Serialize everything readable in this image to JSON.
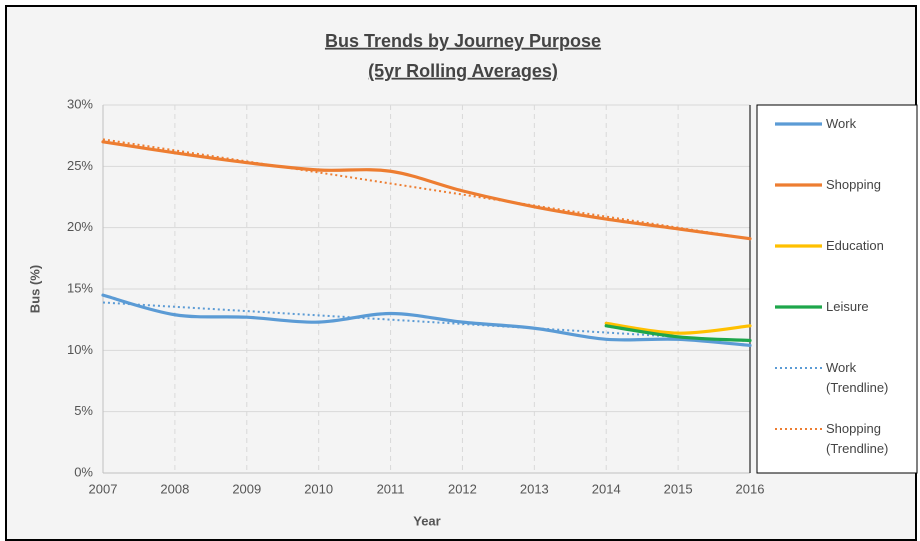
{
  "chart_data": {
    "type": "line",
    "title": "Bus Trends by Journey Purpose",
    "subtitle": "(5yr Rolling Averages)",
    "x_label": "Year",
    "y_label": "Bus (%)",
    "x": [
      2007,
      2008,
      2009,
      2010,
      2011,
      2012,
      2013,
      2014,
      2015,
      2016
    ],
    "xlim": [
      2007,
      2016
    ],
    "xticks": [
      2007,
      2008,
      2009,
      2010,
      2011,
      2012,
      2013,
      2014,
      2015,
      2016
    ],
    "ylim": [
      0,
      30
    ],
    "yticks": [
      {
        "value": 0,
        "label": "0%"
      },
      {
        "value": 5,
        "label": "5%"
      },
      {
        "value": 10,
        "label": "10%"
      },
      {
        "value": 15,
        "label": "15%"
      },
      {
        "value": 20,
        "label": "20%"
      },
      {
        "value": 25,
        "label": "25%"
      },
      {
        "value": 30,
        "label": "30%"
      }
    ],
    "grid": true,
    "smooth": true,
    "legend": "right",
    "series": [
      {
        "name": "Work",
        "color": "#5b9bd5",
        "style": "solid",
        "values": [
          14.5,
          12.9,
          12.7,
          12.3,
          13.0,
          12.3,
          11.8,
          10.9,
          10.9,
          10.4
        ]
      },
      {
        "name": "Shopping",
        "color": "#ed7d31",
        "style": "solid",
        "values": [
          27.0,
          26.1,
          25.3,
          24.7,
          24.6,
          23.0,
          21.7,
          20.7,
          19.9,
          19.1
        ]
      },
      {
        "name": "Education",
        "color": "#ffc000",
        "style": "solid",
        "values": [
          null,
          null,
          null,
          null,
          null,
          null,
          null,
          12.2,
          11.4,
          12.0
        ]
      },
      {
        "name": "Leisure",
        "color": "#1ea64b",
        "style": "solid",
        "values": [
          null,
          null,
          null,
          null,
          null,
          null,
          null,
          12.0,
          11.1,
          10.8
        ]
      },
      {
        "name": "Work (Trendline)",
        "color": "#5b9bd5",
        "style": "dotted",
        "values": [
          13.9,
          13.55,
          13.2,
          12.85,
          12.5,
          12.15,
          11.8,
          11.45,
          11.1,
          10.75
        ]
      },
      {
        "name": "Shopping (Trendline)",
        "color": "#ed7d31",
        "style": "dotted",
        "values": [
          27.2,
          26.3,
          25.4,
          24.5,
          23.6,
          22.7,
          21.8,
          20.9,
          20.0,
          19.1
        ]
      }
    ]
  }
}
